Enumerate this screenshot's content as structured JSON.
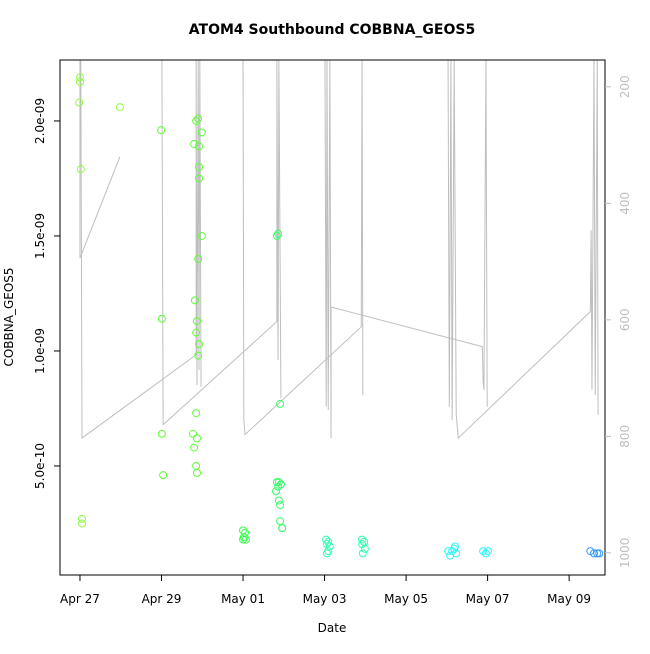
{
  "chart_data": {
    "type": "scatter",
    "title": "ATOM4 Southbound COBBNA_GEOS5",
    "x_label": "Date",
    "y_label": "COBBNA_GEOS5",
    "xlim": [
      -0.49,
      12.88
    ],
    "xticks": [
      {
        "value": 0,
        "label": "Apr 27"
      },
      {
        "value": 2,
        "label": "Apr 29"
      },
      {
        "value": 4,
        "label": "May 01"
      },
      {
        "value": 6,
        "label": "May 03"
      },
      {
        "value": 8,
        "label": "May 05"
      },
      {
        "value": 10,
        "label": "May 07"
      },
      {
        "value": 12,
        "label": "May 09"
      }
    ],
    "ylim": [
      2.6e-11,
      2.265e-09
    ],
    "yticks": [
      {
        "value": 5e-10,
        "label": "5.0e-10"
      },
      {
        "value": 1e-09,
        "label": "1.0e-09"
      },
      {
        "value": 1.5e-09,
        "label": "1.5e-09"
      },
      {
        "value": 2e-09,
        "label": "2.0e-09"
      }
    ],
    "y2lim": [
      1038,
      154
    ],
    "y2ticks": [
      200,
      400,
      600,
      800,
      1000
    ],
    "y2_color": "#bebebe",
    "grid": false,
    "points": {
      "x": [
        0,
        0,
        -0.02,
        0.02,
        0.05,
        0.05,
        0.98,
        1.99,
        2.01,
        2.01,
        2.04,
        2.85,
        2.9,
        2.99,
        2.8,
        2.92,
        2.92,
        2.92,
        2.99,
        2.9,
        2.82,
        2.87,
        2.85,
        2.92,
        2.9,
        2.85,
        2.77,
        2.87,
        2.8,
        2.85,
        2.87,
        4.0,
        4.05,
        4.02,
        4.0,
        4.07,
        4.83,
        4.86,
        4.91,
        4.83,
        4.88,
        4.81,
        4.86,
        4.93,
        4.88,
        4.91,
        4.91,
        4.96,
        4.96,
        6.04,
        6.09,
        6.06,
        6.13,
        6.09,
        6.06,
        6.92,
        6.97,
        6.92,
        6.99,
        6.94,
        9.03,
        9.13,
        9.2,
        9.23,
        9.08,
        9.18,
        9.89,
        9.96,
        10.01,
        12.52,
        12.61,
        12.69,
        12.74
      ],
      "values": [
        2.19e-09,
        2.17e-09,
        2.08e-09,
        1.79e-09,
        2.7e-10,
        2.5e-10,
        2.06e-09,
        1.96e-09,
        1.14e-09,
        6.4e-10,
        4.6e-10,
        2e-09,
        2.01e-09,
        1.95e-09,
        1.9e-09,
        1.89e-09,
        1.8e-09,
        1.75e-09,
        1.5e-09,
        1.4e-09,
        1.22e-09,
        1.13e-09,
        1.08e-09,
        1.03e-09,
        9.8e-10,
        7.3e-10,
        6.4e-10,
        6.2e-10,
        5.8e-10,
        5e-10,
        4.7e-10,
        2.2e-10,
        2.1e-10,
        1.9e-10,
        1.8e-10,
        1.8e-10,
        1.5e-09,
        1.51e-09,
        7.7e-10,
        4.3e-10,
        4.3e-10,
        3.9e-10,
        4.1e-10,
        4.2e-10,
        3.5e-10,
        3.3e-10,
        2.6e-10,
        2.3e-10,
        2.3e-10,
        1.8e-10,
        1.7e-10,
        1.6e-10,
        1.5e-10,
        1.3e-10,
        1.2e-10,
        1.8e-10,
        1.7e-10,
        1.6e-10,
        1.4e-10,
        1.2e-10,
        1.3e-10,
        1.3e-10,
        1.5e-10,
        1.2e-10,
        1.1e-10,
        1.4e-10,
        1.3e-10,
        1.2e-10,
        1.3e-10,
        1.3e-10,
        1.2e-10,
        1.2e-10,
        1.2e-10
      ],
      "colors": [
        "#8cff40",
        "#8cff40",
        "#8cff40",
        "#8cff40",
        "#8cff40",
        "#8cff40",
        "#8cff40",
        "#5cff33",
        "#5cff33",
        "#5cff33",
        "#5cff33",
        "#5cff33",
        "#5cff33",
        "#5cff33",
        "#5cff33",
        "#5cff33",
        "#5cff33",
        "#5cff33",
        "#5cff33",
        "#5cff33",
        "#5cff33",
        "#5cff33",
        "#5cff33",
        "#5cff33",
        "#5cff33",
        "#5cff33",
        "#5cff33",
        "#5cff33",
        "#5cff33",
        "#5cff33",
        "#5cff33",
        "#33ff4d",
        "#33ff4d",
        "#33ff4d",
        "#33ff4d",
        "#33ff4d",
        "#33ff66",
        "#33ff66",
        "#33ff66",
        "#33ff66",
        "#33ff66",
        "#33ff66",
        "#33ff66",
        "#33ff66",
        "#33ff66",
        "#33ff66",
        "#33ff66",
        "#33ff66",
        "#33ff66",
        "#33ffb3",
        "#33ffb3",
        "#33ffb3",
        "#33ffb3",
        "#33ffb3",
        "#33ffb3",
        "#33ffb3",
        "#33ffb3",
        "#33ffb3",
        "#33ffb3",
        "#33ffb3",
        "#33f5ff",
        "#33f5ff",
        "#33f5ff",
        "#33f5ff",
        "#33f5ff",
        "#33f5ff",
        "#33f5ff",
        "#33f5ff",
        "#33f5ff",
        "#3399ff",
        "#3399ff",
        "#3399ff",
        "#3399ff"
      ]
    },
    "pressure": {
      "axis": "y2",
      "color": "#bebebe",
      "x": [
        0,
        0,
        0.98,
        null,
        0.02,
        0.05,
        2.85,
        2.85,
        2.87,
        2.9,
        2.92,
        2.94,
        2.97,
        null,
        2.01,
        2.04,
        4.83,
        4.83,
        4.86,
        4.88,
        4.93,
        null,
        4.0,
        4.02,
        4.05,
        6.9,
        6.92,
        6.94,
        null,
        6.01,
        6.04,
        6.06,
        6.09,
        6.13,
        6.16,
        6.16,
        9.87,
        9.89,
        9.91,
        9.96,
        9.99,
        null,
        9.03,
        9.06,
        9.1,
        9.13,
        9.18,
        9.23,
        9.28,
        12.52,
        12.54,
        12.56,
        12.61,
        12.64,
        12.69,
        12.71
      ],
      "values": [
        155,
        494,
        320,
        null,
        155,
        803,
        660,
        155,
        712,
        155,
        686,
        155,
        715,
        null,
        155,
        780,
        603,
        155,
        669,
        155,
        734,
        null,
        155,
        772,
        797,
        612,
        155,
        729,
        null,
        155,
        749,
        155,
        755,
        155,
        803,
        578,
        646,
        703,
        720,
        155,
        749,
        null,
        155,
        749,
        155,
        772,
        155,
        763,
        803,
        586,
        446,
        720,
        155,
        729,
        155,
        763
      ]
    }
  }
}
